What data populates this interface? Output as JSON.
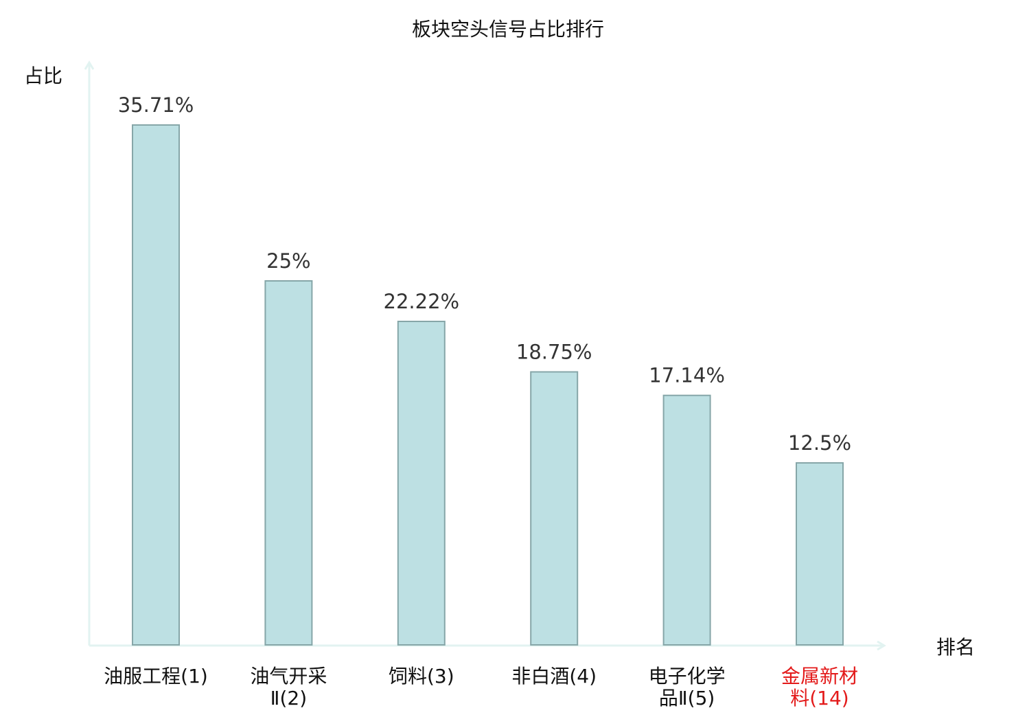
{
  "chart_data": {
    "type": "bar",
    "title": "板块空头信号占比排行",
    "ylabel": "占比",
    "xlabel": "排名",
    "categories": [
      {
        "lines": [
          "油服工程(1)"
        ],
        "highlight": false
      },
      {
        "lines": [
          "油气开采",
          "Ⅱ(2)"
        ],
        "highlight": false
      },
      {
        "lines": [
          "饲料(3)"
        ],
        "highlight": false
      },
      {
        "lines": [
          "非白酒(4)"
        ],
        "highlight": false
      },
      {
        "lines": [
          "电子化学",
          "品Ⅱ(5)"
        ],
        "highlight": false
      },
      {
        "lines": [
          "金属新材",
          "料(14)"
        ],
        "highlight": true
      }
    ],
    "values": [
      35.71,
      25,
      22.22,
      18.75,
      17.14,
      12.5
    ],
    "value_labels": [
      "35.71%",
      "25%",
      "22.22%",
      "18.75%",
      "17.14%",
      "12.5%"
    ],
    "ylim": [
      0,
      35.71
    ],
    "grid": false,
    "legend": "none",
    "colors": {
      "bar_fill": "#bde0e3",
      "bar_stroke": "#86a6a8",
      "axis": "#e2f3f1",
      "label_text": "#333333",
      "title_text": "#111111",
      "highlight_text": "#e31a1a"
    }
  }
}
